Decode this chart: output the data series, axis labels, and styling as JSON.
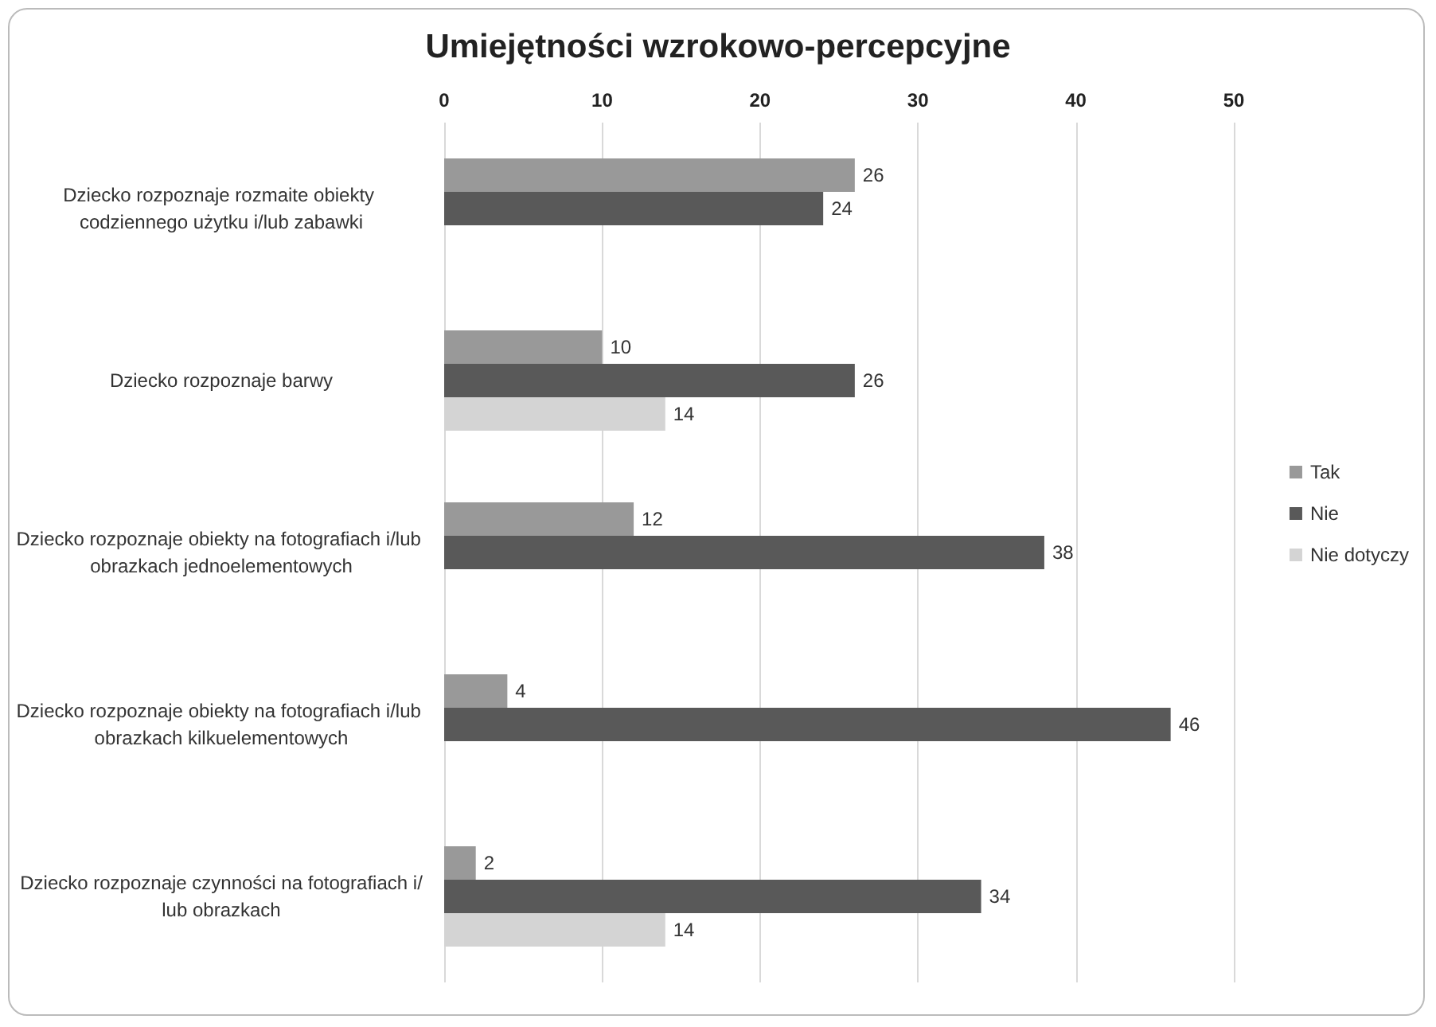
{
  "chart_data": {
    "type": "bar",
    "orientation": "horizontal",
    "title": "Umiejętności wzrokowo-percepcyjne",
    "categories": [
      "Dziecko rozpoznaje rozmaite obiekty codziennego użytku i/lub zabawki",
      "Dziecko rozpoznaje barwy",
      "Dziecko rozpoznaje obiekty na fotografiach i/lub obrazkach jednoelementowych",
      "Dziecko rozpoznaje obiekty na fotografiach i/lub obrazkach kilkuelementowych",
      "Dziecko rozpoznaje czynności na fotografiach i/lub obrazkach"
    ],
    "series": [
      {
        "name": "Tak",
        "color": "#999999",
        "values": [
          26,
          10,
          12,
          4,
          2
        ]
      },
      {
        "name": "Nie",
        "color": "#595959",
        "values": [
          24,
          26,
          38,
          46,
          34
        ]
      },
      {
        "name": "Nie dotyczy",
        "color": "#d4d4d4",
        "values": [
          null,
          14,
          null,
          null,
          14
        ]
      }
    ],
    "xlim": [
      0,
      50
    ],
    "xticks": [
      0,
      10,
      20,
      30,
      40,
      50
    ],
    "grid": "x",
    "legend": "right",
    "data_labels": true
  }
}
